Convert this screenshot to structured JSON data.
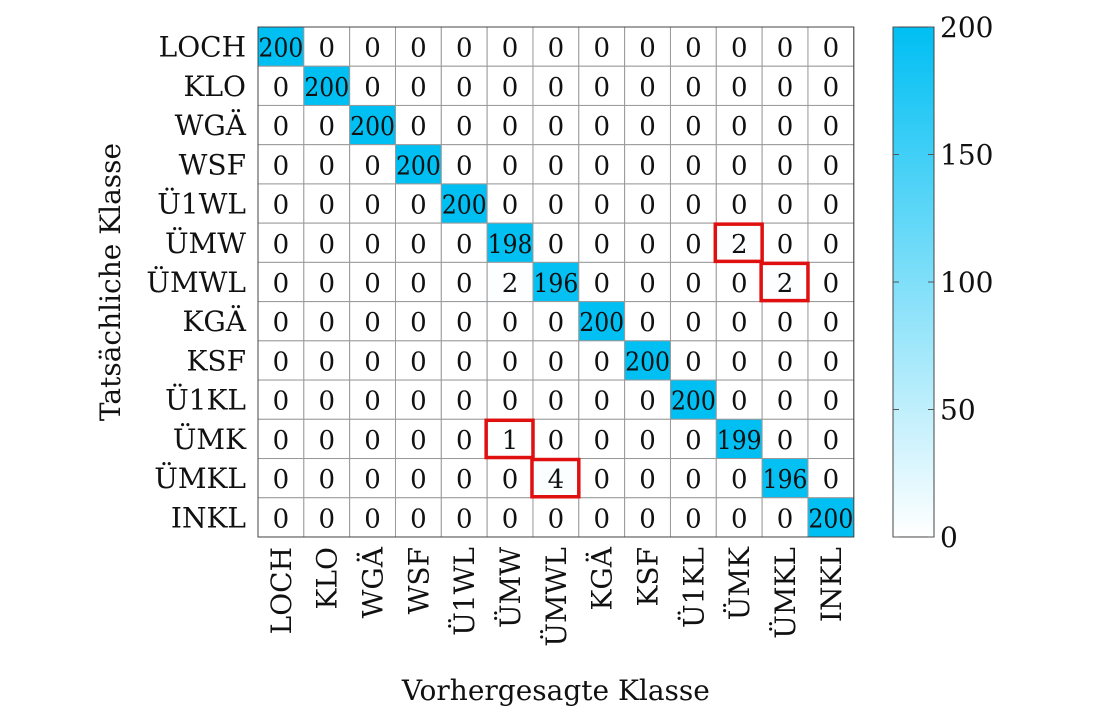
{
  "chart_data": {
    "type": "heatmap",
    "title": "",
    "xlabel": "Vorhergesagte Klasse",
    "ylabel": "Tatsächliche Klasse",
    "x_categories": [
      "LOCH",
      "KLO",
      "WGÄ",
      "WSF",
      "Ü1WL",
      "ÜMW",
      "ÜMWL",
      "KGÄ",
      "KSF",
      "Ü1KL",
      "ÜMK",
      "ÜMKL",
      "INKL"
    ],
    "y_categories": [
      "LOCH",
      "KLO",
      "WGÄ",
      "WSF",
      "Ü1WL",
      "ÜMW",
      "ÜMWL",
      "KGÄ",
      "KSF",
      "Ü1KL",
      "ÜMK",
      "ÜMKL",
      "INKL"
    ],
    "matrix": [
      [
        200,
        0,
        0,
        0,
        0,
        0,
        0,
        0,
        0,
        0,
        0,
        0,
        0
      ],
      [
        0,
        200,
        0,
        0,
        0,
        0,
        0,
        0,
        0,
        0,
        0,
        0,
        0
      ],
      [
        0,
        0,
        200,
        0,
        0,
        0,
        0,
        0,
        0,
        0,
        0,
        0,
        0
      ],
      [
        0,
        0,
        0,
        200,
        0,
        0,
        0,
        0,
        0,
        0,
        0,
        0,
        0
      ],
      [
        0,
        0,
        0,
        0,
        200,
        0,
        0,
        0,
        0,
        0,
        0,
        0,
        0
      ],
      [
        0,
        0,
        0,
        0,
        0,
        198,
        0,
        0,
        0,
        0,
        2,
        0,
        0
      ],
      [
        0,
        0,
        0,
        0,
        0,
        2,
        196,
        0,
        0,
        0,
        0,
        2,
        0
      ],
      [
        0,
        0,
        0,
        0,
        0,
        0,
        0,
        200,
        0,
        0,
        0,
        0,
        0
      ],
      [
        0,
        0,
        0,
        0,
        0,
        0,
        0,
        0,
        200,
        0,
        0,
        0,
        0
      ],
      [
        0,
        0,
        0,
        0,
        0,
        0,
        0,
        0,
        0,
        200,
        0,
        0,
        0
      ],
      [
        0,
        0,
        0,
        0,
        0,
        1,
        0,
        0,
        0,
        0,
        199,
        0,
        0
      ],
      [
        0,
        0,
        0,
        0,
        0,
        0,
        4,
        0,
        0,
        0,
        0,
        196,
        0
      ],
      [
        0,
        0,
        0,
        0,
        0,
        0,
        0,
        0,
        0,
        0,
        0,
        0,
        200
      ]
    ],
    "highlighted_cells": [
      [
        5,
        10
      ],
      [
        6,
        11
      ],
      [
        10,
        5
      ],
      [
        11,
        6
      ]
    ],
    "colorbar": {
      "min": 0,
      "max": 200,
      "ticks": [
        0,
        50,
        100,
        150,
        200
      ]
    },
    "colors": {
      "high": "#00bff3",
      "low": "#ffffff",
      "highlight": "#e01010",
      "grid": "#999999"
    }
  }
}
